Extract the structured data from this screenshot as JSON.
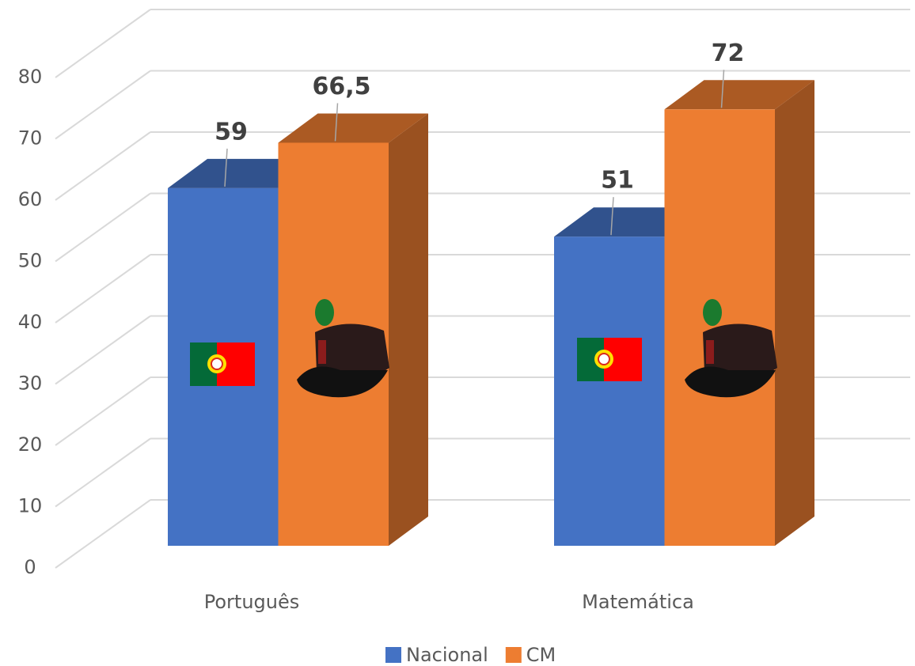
{
  "chart_data": {
    "type": "bar3d",
    "categories": [
      "Português",
      "Matemática"
    ],
    "series": [
      {
        "name": "Nacional",
        "color": "#4472c4",
        "values": [
          59,
          51
        ]
      },
      {
        "name": "CM",
        "color": "#ed7d31",
        "values": [
          66.5,
          72
        ],
        "value_labels": [
          "66,5",
          "72"
        ]
      }
    ],
    "ylim": [
      0,
      80
    ],
    "yticks": [
      0,
      10,
      20,
      30,
      40,
      50,
      60,
      70,
      80
    ],
    "grid": true,
    "legend": "bottom"
  }
}
